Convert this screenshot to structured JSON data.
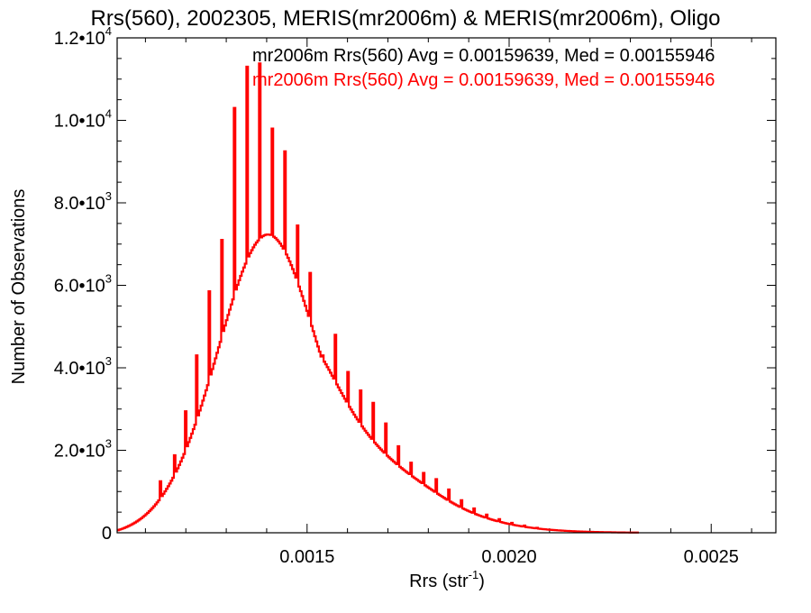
{
  "chart_data": {
    "type": "histogram",
    "title": "Rrs(560), 2002305, MERIS(mr2006m) & MERIS(mr2006m), Oligo",
    "xlabel": {
      "main": "Rrs (str",
      "sup": "-1",
      "close": ")"
    },
    "ylabel": "Number of Observations",
    "xlim": [
      0.00103,
      0.00266
    ],
    "ylim": [
      0,
      12000
    ],
    "x_ticks": [
      {
        "value": 0.0015,
        "label": "0.0015"
      },
      {
        "value": 0.002,
        "label": "0.0020"
      },
      {
        "value": 0.0025,
        "label": "0.0025"
      }
    ],
    "y_ticks": [
      {
        "value": 0,
        "mantissa": "0",
        "exp": ""
      },
      {
        "value": 2000,
        "mantissa": "2.0•10",
        "exp": "3"
      },
      {
        "value": 4000,
        "mantissa": "4.0•10",
        "exp": "3"
      },
      {
        "value": 6000,
        "mantissa": "6.0•10",
        "exp": "3"
      },
      {
        "value": 8000,
        "mantissa": "8.0•10",
        "exp": "3"
      },
      {
        "value": 10000,
        "mantissa": "1.0•10",
        "exp": "4"
      },
      {
        "value": 12000,
        "mantissa": "1.2•10",
        "exp": "4"
      }
    ],
    "legend": [
      {
        "text": "mr2006m Rrs(560) Avg = 0.00159639, Med = 0.00155946",
        "color": "#000000"
      },
      {
        "text": "mr2006m Rrs(560) Avg = 0.00159639, Med = 0.00155946",
        "color": "#ff0000"
      }
    ],
    "bin_start": 0.00103,
    "bin_width": 3.9e-06,
    "series": [
      {
        "name": "mr2006m",
        "color": "#ff0000",
        "values": [
          60,
          73,
          86,
          100,
          115,
          131,
          148,
          166,
          185,
          205,
          226,
          249,
          273,
          298,
          325,
          354,
          384,
          415,
          449,
          484,
          521,
          560,
          601,
          644,
          689,
          736,
          786,
          1250,
          890,
          946,
          1004,
          1065,
          1128,
          1194,
          1262,
          1333,
          1881,
          1483,
          1563,
          1645,
          1730,
          1819,
          1909,
          2947,
          2099,
          2198,
          2300,
          2404,
          2512,
          2621,
          4301,
          2847,
          2964,
          3083,
          3205,
          3328,
          3453,
          3580,
          5855,
          3837,
          3968,
          4099,
          4231,
          4364,
          4497,
          4629,
          7102,
          4893,
          5024,
          5154,
          5283,
          5410,
          5535,
          5658,
          10300,
          5897,
          6011,
          6122,
          6229,
          6332,
          6431,
          6525,
          11300,
          6700,
          6780,
          6853,
          6921,
          6983,
          7038,
          7086,
          11380,
          7162,
          7191,
          7213,
          7226,
          7232,
          7230,
          7220,
          9800,
          7178,
          7147,
          7108,
          7064,
          7012,
          6955,
          6891,
          9250,
          6747,
          6666,
          6580,
          6489,
          6393,
          6293,
          6189,
          7450,
          5970,
          5857,
          5741,
          5623,
          5503,
          5382,
          5260,
          6300,
          5013,
          4889,
          4764,
          4640,
          4516,
          4393,
          4272,
          4300,
          4147,
          4084,
          4017,
          3949,
          3880,
          3809,
          3739,
          4800,
          3597,
          3526,
          3456,
          3387,
          3318,
          3250,
          3183,
          3900,
          3052,
          2989,
          2926,
          2865,
          2806,
          2747,
          2690,
          3450,
          2579,
          2526,
          2474,
          2423,
          2374,
          2325,
          2278,
          3150,
          2187,
          2143,
          2101,
          2059,
          2019,
          1979,
          1941,
          2650,
          1867,
          1831,
          1796,
          1762,
          1728,
          1695,
          1663,
          2100,
          1600,
          1569,
          1539,
          1509,
          1479,
          1450,
          1422,
          1700,
          1365,
          1337,
          1310,
          1283,
          1256,
          1229,
          1203,
          1450,
          1150,
          1124,
          1098,
          1072,
          1046,
          1021,
          995,
          1300,
          945,
          920,
          895,
          871,
          847,
          823,
          800,
          1050,
          754,
          732,
          710,
          689,
          668,
          647,
          627,
          790,
          589,
          571,
          553,
          535,
          518,
          501,
          485,
          590,
          454,
          440,
          425,
          411,
          397,
          384,
          371,
          440,
          347,
          335,
          323,
          312,
          301,
          290,
          280,
          330,
          261,
          251,
          242,
          233,
          224,
          216,
          208,
          240,
          193,
          185,
          178,
          171,
          165,
          158,
          152,
          175,
          140,
          134,
          129,
          124,
          119,
          114,
          109,
          120,
          100,
          96,
          92,
          88,
          84,
          81,
          77,
          74,
          71,
          68,
          65,
          62,
          59,
          57,
          54,
          52,
          50,
          47,
          45,
          43,
          41,
          40,
          38,
          36,
          34,
          33,
          31,
          30,
          29,
          27,
          26,
          25,
          24,
          23,
          22,
          21,
          20,
          19,
          18,
          17,
          16,
          15,
          15,
          14,
          13,
          13,
          12,
          11,
          11,
          10,
          10,
          9,
          9,
          8,
          8,
          7,
          7,
          7,
          6,
          6,
          6,
          5,
          5,
          5
        ]
      }
    ]
  }
}
